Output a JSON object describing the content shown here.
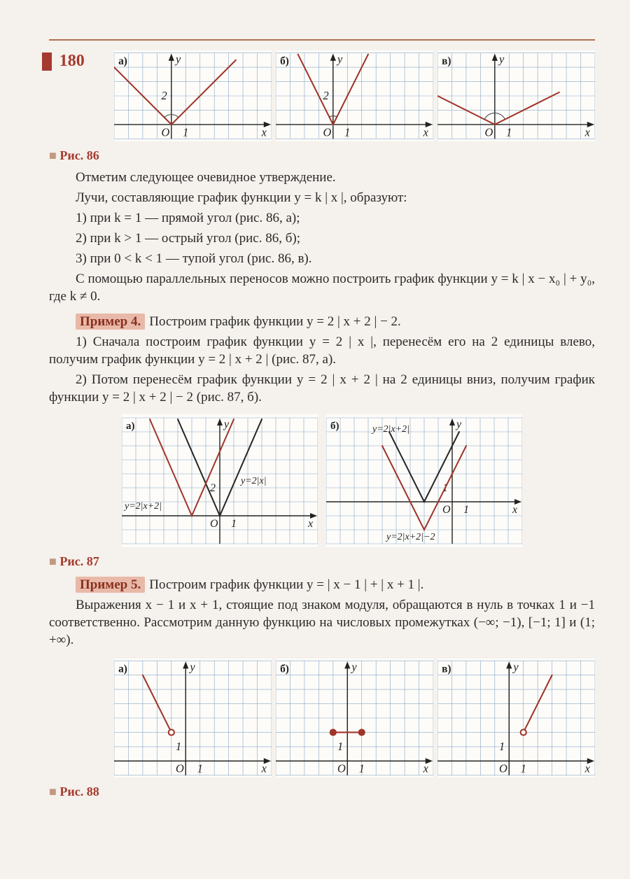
{
  "page_number": "180",
  "fig86_label": "Рис. 86",
  "fig87_label": "Рис. 87",
  "fig88_label": "Рис. 88",
  "fig_a": "а)",
  "fig_b": "б)",
  "fig_v": "в)",
  "axis_x": "x",
  "axis_y": "y",
  "origin": "O",
  "tick1": "1",
  "tick2": "2",
  "text": {
    "p1": "Отметим следующее очевидное утверждение.",
    "p2": "Лучи, составляющие график функции y = k | x |, образуют:",
    "li1": "1) при k = 1 — прямой угол (рис. 86, а);",
    "li2": "2) при k > 1 — острый угол (рис. 86, б);",
    "li3": "3) при 0 < k < 1 — тупой угол (рис. 86, в).",
    "p3": "С помощью параллельных переносов можно построить график функции y = k | x − x₀ | + y₀, где k ≠ 0.",
    "ex4_tag": "Пример 4.",
    "ex4": "Построим график функции y = 2 | x + 2 | − 2.",
    "ex4_1": "1) Сначала построим график функции y = 2 | x |, перенесём его на 2 единицы влево, получим график функции y = 2 | x + 2 | (рис. 87, а).",
    "ex4_2": "2) Потом перенесём график функции y = 2 | x + 2 | на 2 единицы вниз, получим график функции y = 2 | x + 2 | − 2 (рис. 87, б).",
    "ex5_tag": "Пример 5.",
    "ex5": "Построим график функции y = | x − 1 | + | x + 1 |.",
    "ex5_1": "Выражения x − 1 и x + 1, стоящие под знаком модуля, обраща­ются в нуль в точках 1 и −1 соответственно. Рассмотрим данную функцию на числовых промежутках (−∞; −1), [−1; 1] и (1; +∞)."
  },
  "fig87_labels": {
    "eq1": "y=2|x+2|",
    "eq2": "y=2|x|",
    "eq3": "y=2|x+2|",
    "eq4": "y=2|x+2|−2"
  },
  "charts": {
    "grid_color": "#8aa7c4",
    "axis_color": "#222",
    "curve_color": "#a0352a",
    "curve2_color": "#252525",
    "bg": "#fdfcf9",
    "cell": 20
  }
}
